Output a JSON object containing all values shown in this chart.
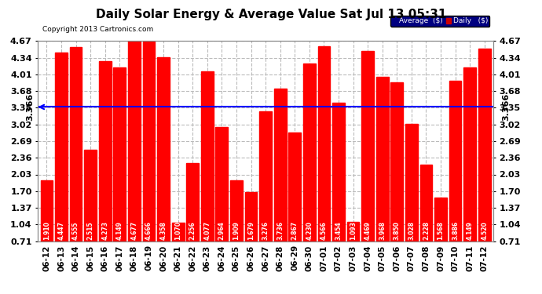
{
  "title": "Daily Solar Energy & Average Value Sat Jul 13 05:31",
  "copyright": "Copyright 2013 Cartronics.com",
  "categories": [
    "06-12",
    "06-13",
    "06-14",
    "06-15",
    "06-16",
    "06-17",
    "06-18",
    "06-19",
    "06-20",
    "06-21",
    "06-22",
    "06-23",
    "06-24",
    "06-25",
    "06-26",
    "06-27",
    "06-28",
    "06-29",
    "06-30",
    "07-01",
    "07-02",
    "07-03",
    "07-04",
    "07-05",
    "07-06",
    "07-07",
    "07-08",
    "07-09",
    "07-10",
    "07-11",
    "07-12"
  ],
  "values": [
    1.91,
    4.447,
    4.555,
    2.515,
    4.273,
    4.149,
    4.677,
    4.666,
    4.358,
    1.07,
    2.256,
    4.077,
    2.964,
    1.909,
    1.679,
    3.276,
    3.736,
    2.867,
    4.23,
    4.566,
    3.454,
    1.093,
    4.469,
    3.968,
    3.85,
    3.028,
    2.228,
    1.568,
    3.886,
    4.149,
    4.52
  ],
  "average": 3.366,
  "bar_color": "#FF0000",
  "line_color": "#0000FF",
  "background_color": "#FFFFFF",
  "plot_bg_color": "#FFFFFF",
  "grid_color": "#BBBBBB",
  "yticks": [
    0.71,
    1.04,
    1.37,
    1.7,
    2.03,
    2.36,
    2.69,
    3.02,
    3.35,
    3.68,
    4.01,
    4.34,
    4.67
  ],
  "ymin": 0.71,
  "ymax": 4.67,
  "legend_avg_color": "#000080",
  "legend_daily_color": "#CC0000",
  "legend_avg_text": "Average  ($)",
  "legend_daily_text": "Daily   ($)",
  "avg_label": "3.366",
  "title_fontsize": 11,
  "bar_text_fontsize": 5.5,
  "copyright_fontsize": 6.5,
  "axis_fontsize": 7.5,
  "ytick_fontsize": 8
}
